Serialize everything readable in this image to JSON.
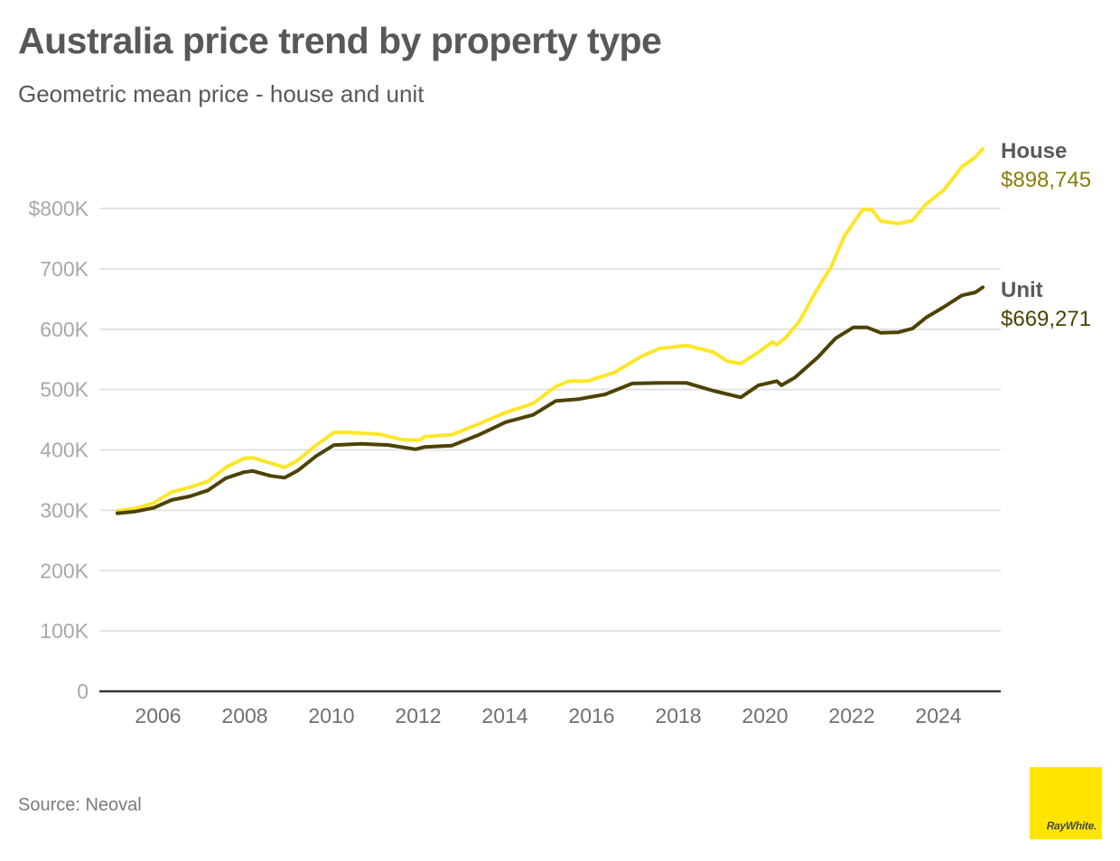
{
  "header": {
    "title": "Australia price trend by property type",
    "subtitle": "Geometric mean price - house and unit"
  },
  "footer": {
    "source": "Source: Neoval",
    "logo_text": "RayWhite."
  },
  "colors": {
    "house": "#fde627",
    "unit": "#4d4200",
    "house_label_value": "#8c7d0a",
    "unit_label_value": "#4d4200",
    "grid": "#e3e3e3",
    "axis": "#333333",
    "brand_yellow": "#ffe500"
  },
  "chart_data": {
    "type": "line",
    "title": "Australia price trend by property type",
    "subtitle": "Geometric mean price - house and unit",
    "xlabel": "",
    "ylabel": "",
    "xlim": [
      2005,
      2025.3
    ],
    "ylim": [
      0,
      900000
    ],
    "grid": true,
    "y_ticks": [
      {
        "value": 0,
        "label": "0"
      },
      {
        "value": 100000,
        "label": "100K"
      },
      {
        "value": 200000,
        "label": "200K"
      },
      {
        "value": 300000,
        "label": "300K"
      },
      {
        "value": 400000,
        "label": "400K"
      },
      {
        "value": 500000,
        "label": "500K"
      },
      {
        "value": 600000,
        "label": "600K"
      },
      {
        "value": 700000,
        "label": "700K"
      },
      {
        "value": 800000,
        "label": "$800K"
      }
    ],
    "x_ticks": [
      {
        "value": 2006,
        "label": "2006"
      },
      {
        "value": 2008,
        "label": "2008"
      },
      {
        "value": 2010,
        "label": "2010"
      },
      {
        "value": 2012,
        "label": "2012"
      },
      {
        "value": 2014,
        "label": "2014"
      },
      {
        "value": 2016,
        "label": "2016"
      },
      {
        "value": 2018,
        "label": "2018"
      },
      {
        "value": 2020,
        "label": "2020"
      },
      {
        "value": 2022,
        "label": "2022"
      },
      {
        "value": 2024,
        "label": "2024"
      }
    ],
    "legend_placement": "right (end-of-line labels)",
    "series": [
      {
        "name": "House",
        "end_label": "$898,745",
        "x": [
          2005.06,
          2005.48,
          2005.9,
          2006.31,
          2006.73,
          2007.15,
          2007.56,
          2007.98,
          2008.19,
          2008.6,
          2008.92,
          2009.23,
          2009.65,
          2010.06,
          2010.38,
          2011.1,
          2011.63,
          2012.04,
          2012.15,
          2012.77,
          2013.4,
          2014.02,
          2014.65,
          2015.17,
          2015.48,
          2015.9,
          2016.52,
          2017.15,
          2017.56,
          2018.19,
          2018.81,
          2019.13,
          2019.44,
          2019.85,
          2020.17,
          2020.27,
          2020.48,
          2020.79,
          2021.21,
          2021.52,
          2021.83,
          2022.25,
          2022.46,
          2022.67,
          2023.08,
          2023.4,
          2023.71,
          2024.13,
          2024.54,
          2024.85,
          2025.02
        ],
        "values": [
          299000,
          303000,
          312000,
          330000,
          338000,
          348000,
          371000,
          386000,
          387000,
          378000,
          371000,
          383000,
          408000,
          429000,
          429000,
          426000,
          417000,
          416000,
          422000,
          425000,
          443000,
          462000,
          477000,
          505000,
          514000,
          514000,
          528000,
          555000,
          568000,
          573000,
          562000,
          547000,
          543000,
          562000,
          579000,
          574000,
          586000,
          613000,
          667000,
          703000,
          754000,
          798000,
          798000,
          779000,
          775000,
          780000,
          807000,
          831000,
          869000,
          885000,
          898745
        ]
      },
      {
        "name": "Unit",
        "end_label": "$669,271",
        "x": [
          2005.06,
          2005.48,
          2005.9,
          2006.31,
          2006.73,
          2007.15,
          2007.56,
          2007.98,
          2008.19,
          2008.6,
          2008.92,
          2009.23,
          2009.65,
          2010.06,
          2010.69,
          2011.31,
          2011.94,
          2012.15,
          2012.77,
          2013.4,
          2014.02,
          2014.65,
          2015.17,
          2015.69,
          2016.31,
          2016.94,
          2017.56,
          2018.19,
          2018.81,
          2019.44,
          2019.85,
          2020.27,
          2020.38,
          2020.69,
          2021.21,
          2021.63,
          2022.04,
          2022.35,
          2022.67,
          2023.08,
          2023.4,
          2023.71,
          2024.13,
          2024.54,
          2024.85,
          2025.02
        ],
        "values": [
          295000,
          298000,
          304000,
          317000,
          323000,
          333000,
          353000,
          363000,
          365000,
          357000,
          354000,
          366000,
          390000,
          408000,
          410000,
          408000,
          401000,
          405000,
          407000,
          425000,
          446000,
          458000,
          481000,
          484000,
          492000,
          510000,
          511000,
          511000,
          498000,
          487000,
          507000,
          514000,
          507000,
          520000,
          553000,
          585000,
          603000,
          603000,
          594000,
          595000,
          601000,
          619000,
          637000,
          656000,
          661000,
          669271
        ]
      }
    ]
  }
}
